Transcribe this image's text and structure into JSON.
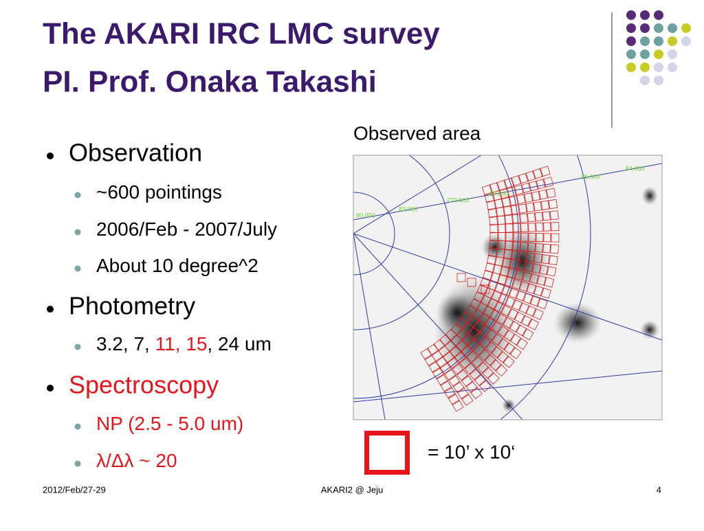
{
  "header": {
    "title_lines": [
      "The AKARI IRC LMC survey",
      "PI. Prof. Onaka Takashi"
    ]
  },
  "bullets": [
    {
      "text": "Observation",
      "color": "#000000",
      "items": [
        {
          "segments": [
            {
              "text": "~600 pointings",
              "color": "#000000"
            }
          ]
        },
        {
          "segments": [
            {
              "text": "2006/Feb - 2007/July",
              "color": "#000000"
            }
          ]
        },
        {
          "segments": [
            {
              "text": "About 10 degree^2",
              "color": "#000000"
            }
          ]
        }
      ]
    },
    {
      "text": "Photometry",
      "color": "#000000",
      "items": [
        {
          "segments": [
            {
              "text": "3.2, 7, ",
              "color": "#000000"
            },
            {
              "text": "11, 15",
              "color": "#e8141b"
            },
            {
              "text": ", 24 um",
              "color": "#000000"
            }
          ]
        }
      ]
    },
    {
      "text": "Spectroscopy",
      "color": "#e8141b",
      "items": [
        {
          "segments": [
            {
              "text": "NP (2.5 - 5.0 um)",
              "color": "#e8141b"
            }
          ]
        },
        {
          "segments": [
            {
              "text": "λ/Δλ ~ 20",
              "color": "#e8141b"
            }
          ]
        }
      ]
    }
  ],
  "figure": {
    "caption": "Observed area",
    "map_labels": [
      "85.000",
      "84.000",
      "87.000",
      "80.000",
      "83.000",
      "270.000"
    ],
    "legend": "= 10’ x 10‘"
  },
  "footer": {
    "date": "2012/Feb/27-29",
    "event": "AKARI2 @ Jeju",
    "page": "4"
  }
}
